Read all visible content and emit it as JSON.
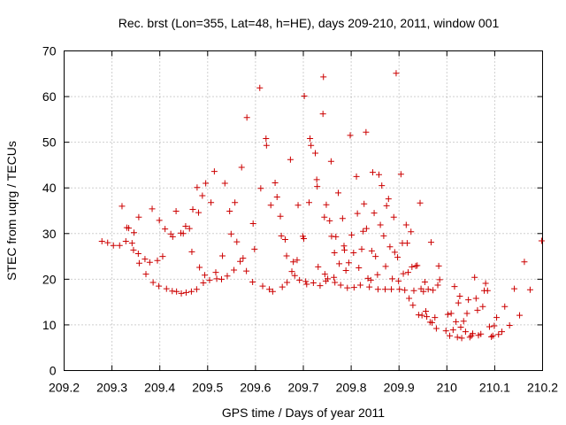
{
  "chart_data": {
    "type": "scatter",
    "title": "Rec. brst (Lon=355, Lat=48, h=HE), days 209-210, 2011, window 001",
    "xlabel": "GPS time / Days of year 2011",
    "ylabel": "STEC from uqrg / TECUs",
    "xlim": [
      209.2,
      210.2
    ],
    "ylim": [
      0,
      70
    ],
    "xticks": [
      209.2,
      209.3,
      209.4,
      209.5,
      209.6,
      209.7,
      209.8,
      209.9,
      210,
      210.1,
      210.2
    ],
    "xtick_labels": [
      "209.2",
      "209.3",
      "209.4",
      "209.5",
      "209.6",
      "209.7",
      "209.8",
      "209.9",
      "210",
      "210.1",
      "210.2"
    ],
    "yticks": [
      0,
      10,
      20,
      30,
      40,
      50,
      60,
      70
    ],
    "ytick_labels": [
      "0",
      "10",
      "20",
      "30",
      "40",
      "50",
      "60",
      "70"
    ],
    "grid": true,
    "marker": "+",
    "color": "#cc0000",
    "series": [
      {
        "name": "STEC",
        "points": [
          [
            209.279,
            28.3
          ],
          [
            209.291,
            28.0
          ],
          [
            209.303,
            27.4
          ],
          [
            209.316,
            27.4
          ],
          [
            209.321,
            36.0
          ],
          [
            209.329,
            28.3
          ],
          [
            209.331,
            31.3
          ],
          [
            209.335,
            31.2
          ],
          [
            209.342,
            27.9
          ],
          [
            209.345,
            26.4
          ],
          [
            209.346,
            30.2
          ],
          [
            209.355,
            25.6
          ],
          [
            209.356,
            33.6
          ],
          [
            209.357,
            23.5
          ],
          [
            209.369,
            24.4
          ],
          [
            209.371,
            21.1
          ],
          [
            209.379,
            23.7
          ],
          [
            209.384,
            35.4
          ],
          [
            209.386,
            19.3
          ],
          [
            209.395,
            24.1
          ],
          [
            209.398,
            18.5
          ],
          [
            209.399,
            32.9
          ],
          [
            209.406,
            25.0
          ],
          [
            209.411,
            31.0
          ],
          [
            209.414,
            17.9
          ],
          [
            209.423,
            29.9
          ],
          [
            209.426,
            17.4
          ],
          [
            209.427,
            29.3
          ],
          [
            209.434,
            34.9
          ],
          [
            209.435,
            17.3
          ],
          [
            209.444,
            30.1
          ],
          [
            209.445,
            16.9
          ],
          [
            209.449,
            30.0
          ],
          [
            209.454,
            31.6
          ],
          [
            209.455,
            17.1
          ],
          [
            209.462,
            31.1
          ],
          [
            209.466,
            17.3
          ],
          [
            209.467,
            26.0
          ],
          [
            209.469,
            35.3
          ],
          [
            209.477,
            17.8
          ],
          [
            209.478,
            40.1
          ],
          [
            209.481,
            34.6
          ],
          [
            209.483,
            22.6
          ],
          [
            209.489,
            38.3
          ],
          [
            209.491,
            19.2
          ],
          [
            209.494,
            20.9
          ],
          [
            209.496,
            41.0
          ],
          [
            209.504,
            19.8
          ],
          [
            209.507,
            36.8
          ],
          [
            209.514,
            43.6
          ],
          [
            209.517,
            21.5
          ],
          [
            209.519,
            20.1
          ],
          [
            209.529,
            20.0
          ],
          [
            209.531,
            25.1
          ],
          [
            209.536,
            41.0
          ],
          [
            209.541,
            20.7
          ],
          [
            209.546,
            34.9
          ],
          [
            209.549,
            29.9
          ],
          [
            209.555,
            22.0
          ],
          [
            209.557,
            36.8
          ],
          [
            209.561,
            28.2
          ],
          [
            209.568,
            23.9
          ],
          [
            209.571,
            44.5
          ],
          [
            209.574,
            24.6
          ],
          [
            209.581,
            21.8
          ],
          [
            209.582,
            55.4
          ],
          [
            209.594,
            19.4
          ],
          [
            209.595,
            32.2
          ],
          [
            209.598,
            26.6
          ],
          [
            209.609,
            61.9
          ],
          [
            209.611,
            39.9
          ],
          [
            209.615,
            18.5
          ],
          [
            209.622,
            50.8
          ],
          [
            209.623,
            49.3
          ],
          [
            209.629,
            17.8
          ],
          [
            209.632,
            36.2
          ],
          [
            209.636,
            17.3
          ],
          [
            209.641,
            41.1
          ],
          [
            209.645,
            38.0
          ],
          [
            209.652,
            33.8
          ],
          [
            209.654,
            29.5
          ],
          [
            209.656,
            18.3
          ],
          [
            209.662,
            28.7
          ],
          [
            209.665,
            25.1
          ],
          [
            209.666,
            19.3
          ],
          [
            209.673,
            46.2
          ],
          [
            209.676,
            21.7
          ],
          [
            209.679,
            23.8
          ],
          [
            209.682,
            20.8
          ],
          [
            209.687,
            24.2
          ],
          [
            209.689,
            36.2
          ],
          [
            209.692,
            19.8
          ],
          [
            209.699,
            29.4
          ],
          [
            209.701,
            28.9
          ],
          [
            209.702,
            60.1
          ],
          [
            209.705,
            19.5
          ],
          [
            209.707,
            18.9
          ],
          [
            209.712,
            36.8
          ],
          [
            209.714,
            50.8
          ],
          [
            209.716,
            49.3
          ],
          [
            209.721,
            19.2
          ],
          [
            209.725,
            47.6
          ],
          [
            209.728,
            41.8
          ],
          [
            209.729,
            40.3
          ],
          [
            209.731,
            22.7
          ],
          [
            209.735,
            18.6
          ],
          [
            209.741,
            56.2
          ],
          [
            209.742,
            64.3
          ],
          [
            209.744,
            33.6
          ],
          [
            209.745,
            21.1
          ],
          [
            209.747,
            19.6
          ],
          [
            209.748,
            36.3
          ],
          [
            209.751,
            20.1
          ],
          [
            209.755,
            32.8
          ],
          [
            209.758,
            45.8
          ],
          [
            209.759,
            29.4
          ],
          [
            209.764,
            20.4
          ],
          [
            209.765,
            25.8
          ],
          [
            209.766,
            19.3
          ],
          [
            209.768,
            29.3
          ],
          [
            209.773,
            38.9
          ],
          [
            209.775,
            23.4
          ],
          [
            209.778,
            18.7
          ],
          [
            209.782,
            33.3
          ],
          [
            209.785,
            27.3
          ],
          [
            209.786,
            26.4
          ],
          [
            209.789,
            21.9
          ],
          [
            209.792,
            18.1
          ],
          [
            209.795,
            23.6
          ],
          [
            209.798,
            51.5
          ],
          [
            209.801,
            29.7
          ],
          [
            209.805,
            25.8
          ],
          [
            209.806,
            18.2
          ],
          [
            209.811,
            42.5
          ],
          [
            209.813,
            34.4
          ],
          [
            209.816,
            22.5
          ],
          [
            209.819,
            18.7
          ],
          [
            209.822,
            26.6
          ],
          [
            209.825,
            30.5
          ],
          [
            209.827,
            36.5
          ],
          [
            209.831,
            52.2
          ],
          [
            209.832,
            31.1
          ],
          [
            209.835,
            20.2
          ],
          [
            209.838,
            18.3
          ],
          [
            209.841,
            19.8
          ],
          [
            209.843,
            26.2
          ],
          [
            209.845,
            43.4
          ],
          [
            209.848,
            34.5
          ],
          [
            209.851,
            25.0
          ],
          [
            209.855,
            21.0
          ],
          [
            209.856,
            17.8
          ],
          [
            209.858,
            42.9
          ],
          [
            209.861,
            31.9
          ],
          [
            209.864,
            40.5
          ],
          [
            209.868,
            29.5
          ],
          [
            209.871,
            17.8
          ],
          [
            209.872,
            22.8
          ],
          [
            209.874,
            36.1
          ],
          [
            209.878,
            37.6
          ],
          [
            209.881,
            27.1
          ],
          [
            209.884,
            17.8
          ],
          [
            209.886,
            20.1
          ],
          [
            209.889,
            33.6
          ],
          [
            209.891,
            25.9
          ],
          [
            209.894,
            65.1
          ],
          [
            209.897,
            24.8
          ],
          [
            209.899,
            19.6
          ],
          [
            209.901,
            17.8
          ],
          [
            209.904,
            43.0
          ],
          [
            209.907,
            27.9
          ],
          [
            209.909,
            21.2
          ],
          [
            209.912,
            17.6
          ],
          [
            209.915,
            31.9
          ],
          [
            209.917,
            27.9
          ],
          [
            209.919,
            21.5
          ],
          [
            209.921,
            15.8
          ],
          [
            209.925,
            30.4
          ],
          [
            209.927,
            22.7
          ],
          [
            209.929,
            14.3
          ],
          [
            209.931,
            17.5
          ],
          [
            209.935,
            22.9
          ],
          [
            209.938,
            23.0
          ],
          [
            209.941,
            12.2
          ],
          [
            209.944,
            36.7
          ],
          [
            209.946,
            17.9
          ],
          [
            209.948,
            12.1
          ],
          [
            209.951,
            17.3
          ],
          [
            209.954,
            19.4
          ],
          [
            209.956,
            13.0
          ],
          [
            209.958,
            11.8
          ],
          [
            209.961,
            17.8
          ],
          [
            209.965,
            10.6
          ],
          [
            209.967,
            28.1
          ],
          [
            209.969,
            10.5
          ],
          [
            209.971,
            17.6
          ],
          [
            209.975,
            11.6
          ],
          [
            209.978,
            9.2
          ],
          [
            209.981,
            18.7
          ],
          [
            209.983,
            22.9
          ],
          [
            209.985,
            19.9
          ],
          [
            209.998,
            8.7
          ],
          [
            210.002,
            12.3
          ],
          [
            210.006,
            7.6
          ],
          [
            210.009,
            12.5
          ],
          [
            210.013,
            8.9
          ],
          [
            210.016,
            18.4
          ],
          [
            210.019,
            10.7
          ],
          [
            210.022,
            7.3
          ],
          [
            210.024,
            14.8
          ],
          [
            210.027,
            16.3
          ],
          [
            210.029,
            9.5
          ],
          [
            210.031,
            7.1
          ],
          [
            210.035,
            10.8
          ],
          [
            210.039,
            8.5
          ],
          [
            210.042,
            12.5
          ],
          [
            210.045,
            15.5
          ],
          [
            210.048,
            7.3
          ],
          [
            210.051,
            7.6
          ],
          [
            210.054,
            8.1
          ],
          [
            210.058,
            20.4
          ],
          [
            210.061,
            15.8
          ],
          [
            210.064,
            13.2
          ],
          [
            210.066,
            7.7
          ],
          [
            210.071,
            8.0
          ],
          [
            210.075,
            14.0
          ],
          [
            210.078,
            17.5
          ],
          [
            210.081,
            19.1
          ],
          [
            210.085,
            17.5
          ],
          [
            210.089,
            9.6
          ],
          [
            210.093,
            7.4
          ],
          [
            210.096,
            7.6
          ],
          [
            210.099,
            9.8
          ],
          [
            210.104,
            11.6
          ],
          [
            210.108,
            7.9
          ],
          [
            210.115,
            8.5
          ],
          [
            210.121,
            14.0
          ],
          [
            210.131,
            9.9
          ],
          [
            210.141,
            17.9
          ],
          [
            210.152,
            12.1
          ],
          [
            210.162,
            23.8
          ],
          [
            210.174,
            17.7
          ],
          [
            210.198,
            28.4
          ]
        ]
      }
    ]
  }
}
